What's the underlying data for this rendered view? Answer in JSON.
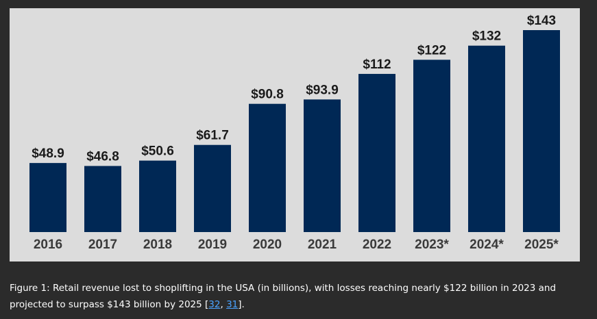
{
  "chart_data": {
    "type": "bar",
    "categories": [
      "2016",
      "2017",
      "2018",
      "2019",
      "2020",
      "2021",
      "2022",
      "2023*",
      "2024*",
      "2025*"
    ],
    "values": [
      48.9,
      46.8,
      50.6,
      61.7,
      90.8,
      93.9,
      112,
      122,
      132,
      143
    ],
    "value_labels": [
      "$48.9",
      "$46.8",
      "$50.6",
      "$61.7",
      "$90.8",
      "$93.9",
      "$112",
      "$122",
      "$132",
      "$143"
    ],
    "title": "",
    "xlabel": "",
    "ylabel": "",
    "ylim": [
      0,
      143
    ],
    "grid": false,
    "bar_color": "#002855",
    "background_color": "#dcdcdc"
  },
  "caption": {
    "prefix": "Figure 1: Retail revenue lost to shoplifting in the USA (in billions), with losses reaching nearly $122 billion in 2023 and projected to surpass $143 billion by 2025 [",
    "ref1": "32",
    "separator": ", ",
    "ref2": "31",
    "suffix": "]."
  }
}
